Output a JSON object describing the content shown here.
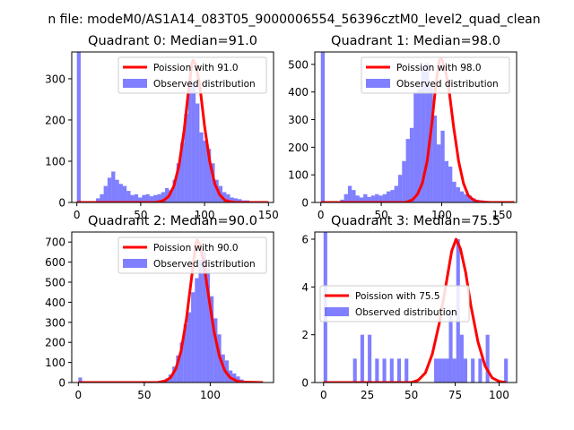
{
  "suptitle": "n file: modeM0/AS1A14_083T05_9000006554_56396cztM0_level2_quad_clean",
  "colors": {
    "hist": "#0000ff",
    "fit": "#ff0000",
    "axis": "#000000",
    "legend_border": "#cccccc",
    "background": "#ffffff"
  },
  "chart_data": [
    {
      "type": "bar",
      "title": "Quadrant 0: Median=91.0",
      "xlabel": "",
      "ylabel": "",
      "xlim": [
        -4,
        154
      ],
      "ylim": [
        0,
        365
      ],
      "xticks": [
        0,
        50,
        100,
        150
      ],
      "yticks": [
        0,
        100,
        200,
        300
      ],
      "bin_width": 3,
      "legend_position": "upper-right",
      "series": [
        {
          "name": "Observed distribution",
          "kind": "histogram",
          "bins_start": [
            0,
            3,
            6,
            9,
            12,
            15,
            18,
            21,
            24,
            27,
            30,
            33,
            36,
            39,
            42,
            45,
            48,
            51,
            54,
            57,
            60,
            63,
            66,
            69,
            72,
            75,
            78,
            81,
            84,
            87,
            90,
            93,
            96,
            99,
            102,
            105,
            108,
            111,
            114,
            117,
            120,
            123,
            126,
            129,
            132,
            135,
            138,
            141,
            144,
            147
          ],
          "values": [
            365,
            0,
            0,
            0,
            3,
            10,
            20,
            40,
            60,
            75,
            55,
            45,
            40,
            28,
            18,
            20,
            12,
            18,
            20,
            15,
            18,
            20,
            25,
            35,
            30,
            55,
            95,
            145,
            215,
            300,
            290,
            240,
            170,
            150,
            130,
            95,
            55,
            40,
            25,
            20,
            12,
            10,
            8,
            5,
            5,
            3,
            2,
            2,
            0,
            0
          ]
        },
        {
          "name": "Poission with 91.0",
          "kind": "line",
          "x": [
            0,
            62,
            68,
            72,
            76,
            80,
            84,
            87,
            90,
            91,
            93,
            96,
            100,
            104,
            108,
            112,
            116,
            120,
            124,
            130,
            150
          ],
          "y": [
            0,
            0,
            5,
            15,
            40,
            90,
            175,
            260,
            335,
            345,
            335,
            290,
            185,
            100,
            45,
            18,
            5,
            2,
            0,
            0,
            0
          ]
        }
      ]
    },
    {
      "type": "bar",
      "title": "Quadrant 1: Median=98.0",
      "xlabel": "",
      "ylabel": "",
      "xlim": [
        -5,
        162
      ],
      "ylim": [
        0,
        545
      ],
      "xticks": [
        0,
        50,
        100,
        150
      ],
      "yticks": [
        0,
        100,
        200,
        300,
        400,
        500
      ],
      "bin_width": 3.2,
      "legend_position": "upper-right",
      "series": [
        {
          "name": "Observed distribution",
          "kind": "histogram",
          "bins_start": [
            0,
            3.2,
            6.4,
            9.6,
            12.8,
            16,
            19.2,
            22.4,
            25.6,
            28.8,
            32,
            35.2,
            38.4,
            41.6,
            44.8,
            48,
            51.2,
            54.4,
            57.6,
            60.8,
            64,
            67.2,
            70.4,
            73.6,
            76.8,
            80,
            83.2,
            86.4,
            89.6,
            92.8,
            96,
            99.2,
            102.4,
            105.6,
            108.8,
            112,
            115.2,
            118.4,
            121.6,
            124.8,
            128,
            131.2,
            134.4,
            137.6,
            140.8,
            144,
            147.2,
            150.4,
            153.6,
            156.8
          ],
          "values": [
            545,
            0,
            0,
            0,
            3,
            10,
            30,
            60,
            45,
            25,
            18,
            30,
            20,
            25,
            30,
            25,
            30,
            40,
            45,
            60,
            100,
            150,
            230,
            270,
            400,
            410,
            480,
            505,
            425,
            315,
            210,
            260,
            150,
            130,
            75,
            55,
            40,
            30,
            25,
            15,
            10,
            8,
            5,
            3,
            2,
            2,
            1,
            0,
            0,
            0
          ]
        },
        {
          "name": "Poission with 98.0",
          "kind": "line",
          "x": [
            0,
            70,
            76,
            80,
            84,
            88,
            92,
            95,
            98,
            100,
            103,
            106,
            110,
            114,
            118,
            122,
            126,
            130,
            140,
            160
          ],
          "y": [
            0,
            0,
            10,
            30,
            70,
            150,
            290,
            420,
            515,
            520,
            480,
            410,
            270,
            150,
            70,
            25,
            10,
            3,
            0,
            0
          ]
        }
      ]
    },
    {
      "type": "bar",
      "title": "Quadrant 2: Median=90.0",
      "xlabel": "",
      "ylabel": "",
      "xlim": [
        -5,
        148
      ],
      "ylim": [
        0,
        750
      ],
      "xticks": [
        0,
        50,
        100
      ],
      "yticks": [
        0,
        100,
        200,
        300,
        400,
        500,
        600,
        700
      ],
      "bin_width": 2.85,
      "legend_position": "upper-right",
      "series": [
        {
          "name": "Observed distribution",
          "kind": "histogram",
          "bins_start": [
            0,
            2.85,
            5.7,
            8.55,
            11.4,
            14.25,
            17.1,
            19.95,
            22.8,
            25.65,
            28.5,
            31.35,
            34.2,
            37.05,
            39.9,
            42.75,
            45.6,
            48.45,
            51.3,
            54.15,
            57,
            59.85,
            62.7,
            65.55,
            68.4,
            71.25,
            74.1,
            76.95,
            79.8,
            82.65,
            85.5,
            88.35,
            91.2,
            94.05,
            96.9,
            99.75,
            102.6,
            105.45,
            108.3,
            111.15,
            114,
            116.85,
            119.7,
            122.55,
            125.4,
            128.25,
            131.1,
            133.95,
            136.8,
            139.65
          ],
          "values": [
            25,
            0,
            0,
            0,
            0,
            0,
            0,
            0,
            0,
            0,
            0,
            0,
            0,
            0,
            0,
            0,
            0,
            0,
            0,
            0,
            3,
            5,
            10,
            20,
            40,
            80,
            135,
            200,
            290,
            350,
            450,
            520,
            610,
            650,
            570,
            430,
            320,
            240,
            140,
            110,
            60,
            45,
            30,
            15,
            8,
            5,
            3,
            2,
            1,
            0
          ]
        },
        {
          "name": "Poission with 90.0",
          "kind": "line",
          "x": [
            0,
            60,
            66,
            70,
            74,
            78,
            82,
            86,
            89,
            90,
            92,
            95,
            99,
            103,
            107,
            111,
            115,
            120,
            125,
            140
          ],
          "y": [
            0,
            0,
            8,
            25,
            70,
            160,
            320,
            530,
            690,
            710,
            690,
            600,
            420,
            250,
            130,
            60,
            25,
            8,
            2,
            0
          ]
        }
      ]
    },
    {
      "type": "bar",
      "title": "Quadrant 3: Median=75.5",
      "xlabel": "",
      "ylabel": "",
      "xlim": [
        -5,
        110
      ],
      "ylim": [
        0,
        6.3
      ],
      "xticks": [
        0,
        25,
        50,
        75,
        100
      ],
      "yticks": [
        0,
        2,
        4,
        6
      ],
      "bin_width": 2.1,
      "legend_position": "center-left",
      "series": [
        {
          "name": "Observed distribution",
          "kind": "histogram",
          "bins_start": [
            0,
            2.1,
            4.2,
            6.3,
            8.4,
            10.5,
            12.6,
            14.7,
            16.8,
            18.9,
            21,
            23.1,
            25.2,
            27.3,
            29.4,
            31.5,
            33.6,
            35.7,
            37.8,
            39.9,
            42,
            44.1,
            46.2,
            48.3,
            50.4,
            52.5,
            54.6,
            56.7,
            58.8,
            60.9,
            63,
            65.1,
            67.2,
            69.3,
            71.4,
            73.5,
            75.6,
            77.7,
            79.8,
            81.9,
            84,
            86.1,
            88.2,
            90.3,
            92.4,
            94.5,
            96.6,
            98.7,
            100.8,
            102.9
          ],
          "values": [
            6.3,
            0,
            0,
            0,
            0,
            0,
            0,
            0,
            1,
            0,
            2,
            0,
            2,
            0,
            1,
            0,
            1,
            0,
            1,
            0,
            1,
            0,
            1,
            0,
            0,
            0,
            0,
            0,
            0,
            0,
            1,
            1,
            1,
            1,
            3,
            1,
            6,
            2,
            1,
            0,
            1,
            0,
            1,
            0,
            2,
            0,
            0,
            0,
            0,
            1
          ]
        },
        {
          "name": "Poission with 75.5",
          "kind": "line",
          "x": [
            0,
            50,
            54,
            58,
            62,
            66,
            70,
            73,
            75.5,
            78,
            81,
            84,
            88,
            92,
            96,
            100,
            104
          ],
          "y": [
            0,
            0,
            0.1,
            0.4,
            1.2,
            2.5,
            4.2,
            5.5,
            6.0,
            5.6,
            4.6,
            3.2,
            1.7,
            0.7,
            0.2,
            0.05,
            0
          ]
        }
      ]
    }
  ]
}
